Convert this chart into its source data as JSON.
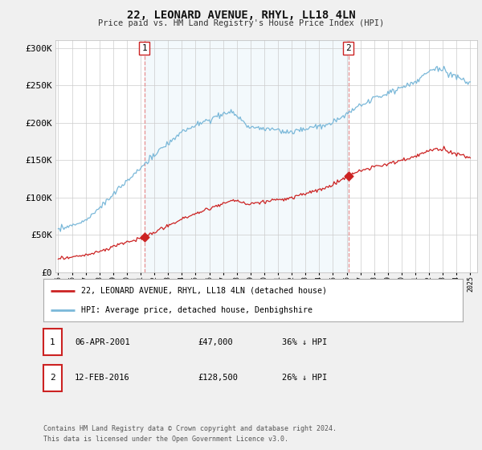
{
  "title": "22, LEONARD AVENUE, RHYL, LL18 4LN",
  "subtitle": "Price paid vs. HM Land Registry's House Price Index (HPI)",
  "hpi_color": "#7ab8d9",
  "sale_color": "#cc2222",
  "vline_color": "#e89090",
  "shade_color": "#ddeef8",
  "sale1": {
    "date_num": 2001.27,
    "price": 47000,
    "label": "1"
  },
  "sale2": {
    "date_num": 2016.12,
    "price": 128500,
    "label": "2"
  },
  "ylim": [
    0,
    310000
  ],
  "xlim": [
    1994.8,
    2025.5
  ],
  "yticks": [
    0,
    50000,
    100000,
    150000,
    200000,
    250000,
    300000
  ],
  "ytick_labels": [
    "£0",
    "£50K",
    "£100K",
    "£150K",
    "£200K",
    "£250K",
    "£300K"
  ],
  "legend_sale_label": "22, LEONARD AVENUE, RHYL, LL18 4LN (detached house)",
  "legend_hpi_label": "HPI: Average price, detached house, Denbighshire",
  "footer1": "Contains HM Land Registry data © Crown copyright and database right 2024.",
  "footer2": "This data is licensed under the Open Government Licence v3.0.",
  "table_row1": [
    "1",
    "06-APR-2001",
    "£47,000",
    "36% ↓ HPI"
  ],
  "table_row2": [
    "2",
    "12-FEB-2016",
    "£128,500",
    "26% ↓ HPI"
  ],
  "background_color": "#f0f0f0",
  "plot_bg_color": "#ffffff",
  "legend_bg": "#ffffff",
  "grid_color": "#cccccc"
}
